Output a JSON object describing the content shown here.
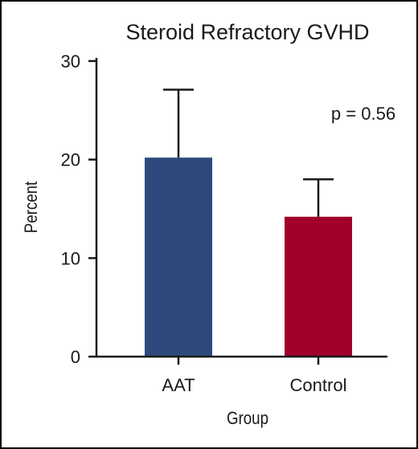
{
  "chart_data": {
    "type": "bar",
    "title": "Steroid Refractory GVHD",
    "xlabel": "Group",
    "ylabel": "Percent",
    "categories": [
      "AAT",
      "Control"
    ],
    "values": [
      20.2,
      14.2
    ],
    "error_upper": [
      27.1,
      18.0
    ],
    "ylim": [
      0,
      30
    ],
    "yticks": [
      0,
      10,
      20,
      30
    ],
    "bar_colors": [
      "#2e4a7d",
      "#a0002a"
    ],
    "annotation": "p = 0.56",
    "grid": false,
    "legend": "none"
  }
}
